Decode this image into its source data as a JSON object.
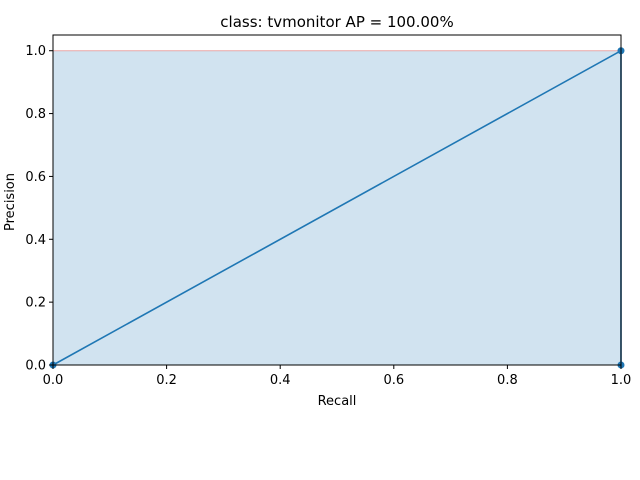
{
  "chart_data": {
    "type": "area",
    "title": "class: tvmonitor AP = 100.00%",
    "xlabel": "Recall",
    "ylabel": "Precision",
    "xlim": [
      0,
      1
    ],
    "ylim": [
      0,
      1.05
    ],
    "xticks": [
      "0.0",
      "0.2",
      "0.4",
      "0.6",
      "0.8",
      "1.0"
    ],
    "yticks": [
      "0.0",
      "0.2",
      "0.4",
      "0.6",
      "0.8",
      "1.0"
    ],
    "grid": false,
    "fill_area": {
      "x": [
        0,
        0,
        1,
        1
      ],
      "y": [
        0,
        1,
        1,
        0
      ]
    },
    "series": [
      {
        "x": [
          0,
          1,
          1
        ],
        "y": [
          0,
          1,
          0
        ],
        "markers": true
      }
    ],
    "colors": {
      "line": "#1f77b4",
      "fill": "#d1e3f0",
      "envelope": "#e8a6a6",
      "axis": "#000000"
    }
  }
}
